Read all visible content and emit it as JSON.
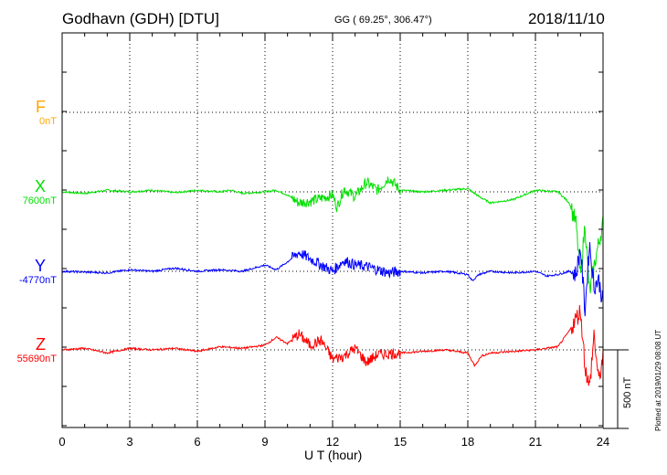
{
  "header": {
    "station": "Godhavn (GDH)  [DTU]",
    "coords": "GG ( 69.25°, 306.47°)",
    "date": "2018/11/10"
  },
  "plotted_note": "Plotted at 2019/01/29 08:08 UT",
  "chart_data": {
    "type": "line",
    "xlabel": "U T (hour)",
    "xlim": [
      0,
      24
    ],
    "x_ticks": [
      "0",
      "3",
      "6",
      "9",
      "12",
      "15",
      "18",
      "21",
      "24"
    ],
    "scale_bar_label": "500 nT",
    "scale_bar_nT": 500,
    "series": [
      {
        "name": "F",
        "baseline_label": "0nT",
        "color": "#ffa500",
        "values": []
      },
      {
        "name": "X",
        "baseline_label": "7600nT",
        "color": "#00e000",
        "points": [
          [
            0,
            0
          ],
          [
            1,
            -10
          ],
          [
            2,
            10
          ],
          [
            3,
            0
          ],
          [
            4,
            10
          ],
          [
            5,
            -5
          ],
          [
            6,
            10
          ],
          [
            7,
            0
          ],
          [
            7.5,
            10
          ],
          [
            8,
            -10
          ],
          [
            9,
            0
          ],
          [
            9.5,
            10
          ],
          [
            10,
            -20
          ],
          [
            10.5,
            -70
          ],
          [
            11,
            -60
          ],
          [
            11.5,
            -40
          ],
          [
            12,
            -20
          ],
          [
            12.2,
            -100
          ],
          [
            12.5,
            20
          ],
          [
            13,
            -30
          ],
          [
            13.5,
            60
          ],
          [
            14,
            10
          ],
          [
            14.5,
            90
          ],
          [
            15,
            10
          ],
          [
            16,
            0
          ],
          [
            17,
            10
          ],
          [
            18,
            20
          ],
          [
            18.5,
            -30
          ],
          [
            19,
            -70
          ],
          [
            20,
            -50
          ],
          [
            21,
            10
          ],
          [
            22,
            0
          ],
          [
            22.5,
            -70
          ],
          [
            22.8,
            -200
          ],
          [
            23,
            -550
          ],
          [
            23.2,
            -200
          ],
          [
            23.4,
            -650
          ],
          [
            23.7,
            -400
          ],
          [
            24,
            -200
          ]
        ]
      },
      {
        "name": "Y",
        "baseline_label": "-4770nT",
        "color": "#0000ff",
        "points": [
          [
            0,
            0
          ],
          [
            2,
            -10
          ],
          [
            3,
            10
          ],
          [
            4,
            0
          ],
          [
            5,
            20
          ],
          [
            6,
            0
          ],
          [
            7,
            10
          ],
          [
            8,
            0
          ],
          [
            8.5,
            20
          ],
          [
            9,
            40
          ],
          [
            9.5,
            10
          ],
          [
            10,
            60
          ],
          [
            10.5,
            120
          ],
          [
            11,
            80
          ],
          [
            11.5,
            40
          ],
          [
            12,
            0
          ],
          [
            12.5,
            70
          ],
          [
            13,
            40
          ],
          [
            13.5,
            30
          ],
          [
            14,
            10
          ],
          [
            14.5,
            -10
          ],
          [
            15,
            0
          ],
          [
            16,
            -10
          ],
          [
            17,
            0
          ],
          [
            18,
            -20
          ],
          [
            18.2,
            -60
          ],
          [
            18.5,
            -20
          ],
          [
            19,
            0
          ],
          [
            20,
            -10
          ],
          [
            21,
            0
          ],
          [
            21.5,
            -30
          ],
          [
            22,
            -20
          ],
          [
            22.5,
            0
          ],
          [
            22.8,
            -20
          ],
          [
            23,
            150
          ],
          [
            23.2,
            -250
          ],
          [
            23.4,
            180
          ],
          [
            23.6,
            -100
          ],
          [
            23.8,
            -50
          ],
          [
            24,
            -200
          ]
        ]
      },
      {
        "name": "Z",
        "baseline_label": "55690nT",
        "color": "#ff0000",
        "points": [
          [
            0,
            0
          ],
          [
            1,
            10
          ],
          [
            2,
            -20
          ],
          [
            3,
            10
          ],
          [
            4,
            0
          ],
          [
            5,
            10
          ],
          [
            6,
            -10
          ],
          [
            7,
            20
          ],
          [
            8,
            10
          ],
          [
            9,
            30
          ],
          [
            9.5,
            80
          ],
          [
            10,
            40
          ],
          [
            10.5,
            100
          ],
          [
            11,
            30
          ],
          [
            11.5,
            60
          ],
          [
            12,
            -60
          ],
          [
            12.5,
            -40
          ],
          [
            13,
            10
          ],
          [
            13.5,
            -80
          ],
          [
            14,
            -30
          ],
          [
            15,
            -20
          ],
          [
            16,
            -10
          ],
          [
            17,
            0
          ],
          [
            18,
            -20
          ],
          [
            18.3,
            -100
          ],
          [
            18.6,
            -40
          ],
          [
            19,
            -20
          ],
          [
            20,
            -10
          ],
          [
            21,
            0
          ],
          [
            22,
            20
          ],
          [
            22.5,
            120
          ],
          [
            23,
            250
          ],
          [
            23.2,
            -100
          ],
          [
            23.4,
            -250
          ],
          [
            23.6,
            100
          ],
          [
            23.8,
            -200
          ],
          [
            24,
            -50
          ]
        ]
      }
    ]
  }
}
